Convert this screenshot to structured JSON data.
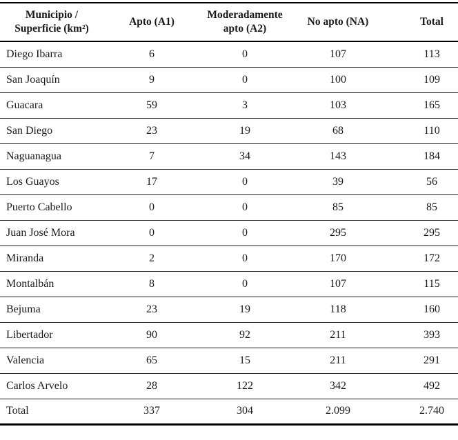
{
  "page": {
    "background": "#ffffff",
    "text_color": "#1a1a1a",
    "rule_color": "#000000"
  },
  "table": {
    "columns": [
      {
        "id": "municipio",
        "label": "Municipio /\nSuperficie (km²)"
      },
      {
        "id": "apto",
        "label": "Apto (A1)"
      },
      {
        "id": "mod_apto",
        "label": "Moderadamente\napto (A2)"
      },
      {
        "id": "no_apto",
        "label": "No apto (NA)"
      },
      {
        "id": "total",
        "label": "Total"
      }
    ],
    "rows": [
      {
        "municipio": "Diego Ibarra",
        "apto": "6",
        "mod_apto": "0",
        "no_apto": "107",
        "total": "113"
      },
      {
        "municipio": "San Joaquín",
        "apto": "9",
        "mod_apto": "0",
        "no_apto": "100",
        "total": "109"
      },
      {
        "municipio": "Guacara",
        "apto": "59",
        "mod_apto": "3",
        "no_apto": "103",
        "total": "165"
      },
      {
        "municipio": "San Diego",
        "apto": "23",
        "mod_apto": "19",
        "no_apto": "68",
        "total": "110"
      },
      {
        "municipio": "Naguanagua",
        "apto": "7",
        "mod_apto": "34",
        "no_apto": "143",
        "total": "184"
      },
      {
        "municipio": "Los Guayos",
        "apto": "17",
        "mod_apto": "0",
        "no_apto": "39",
        "total": "56"
      },
      {
        "municipio": "Puerto Cabello",
        "apto": "0",
        "mod_apto": "0",
        "no_apto": "85",
        "total": "85"
      },
      {
        "municipio": "Juan José Mora",
        "apto": "0",
        "mod_apto": "0",
        "no_apto": "295",
        "total": "295"
      },
      {
        "municipio": "Miranda",
        "apto": "2",
        "mod_apto": "0",
        "no_apto": "170",
        "total": "172"
      },
      {
        "municipio": "Montalbán",
        "apto": "8",
        "mod_apto": "0",
        "no_apto": "107",
        "total": "115"
      },
      {
        "municipio": "Bejuma",
        "apto": "23",
        "mod_apto": "19",
        "no_apto": "118",
        "total": "160"
      },
      {
        "municipio": "Libertador",
        "apto": "90",
        "mod_apto": "92",
        "no_apto": "211",
        "total": "393"
      },
      {
        "municipio": "Valencia",
        "apto": "65",
        "mod_apto": "15",
        "no_apto": "211",
        "total": "291"
      },
      {
        "municipio": "Carlos Arvelo",
        "apto": "28",
        "mod_apto": "122",
        "no_apto": "342",
        "total": "492"
      },
      {
        "municipio": "Total",
        "apto": "337",
        "mod_apto": "304",
        "no_apto": "2.099",
        "total": "2.740",
        "is_total": true
      }
    ]
  }
}
